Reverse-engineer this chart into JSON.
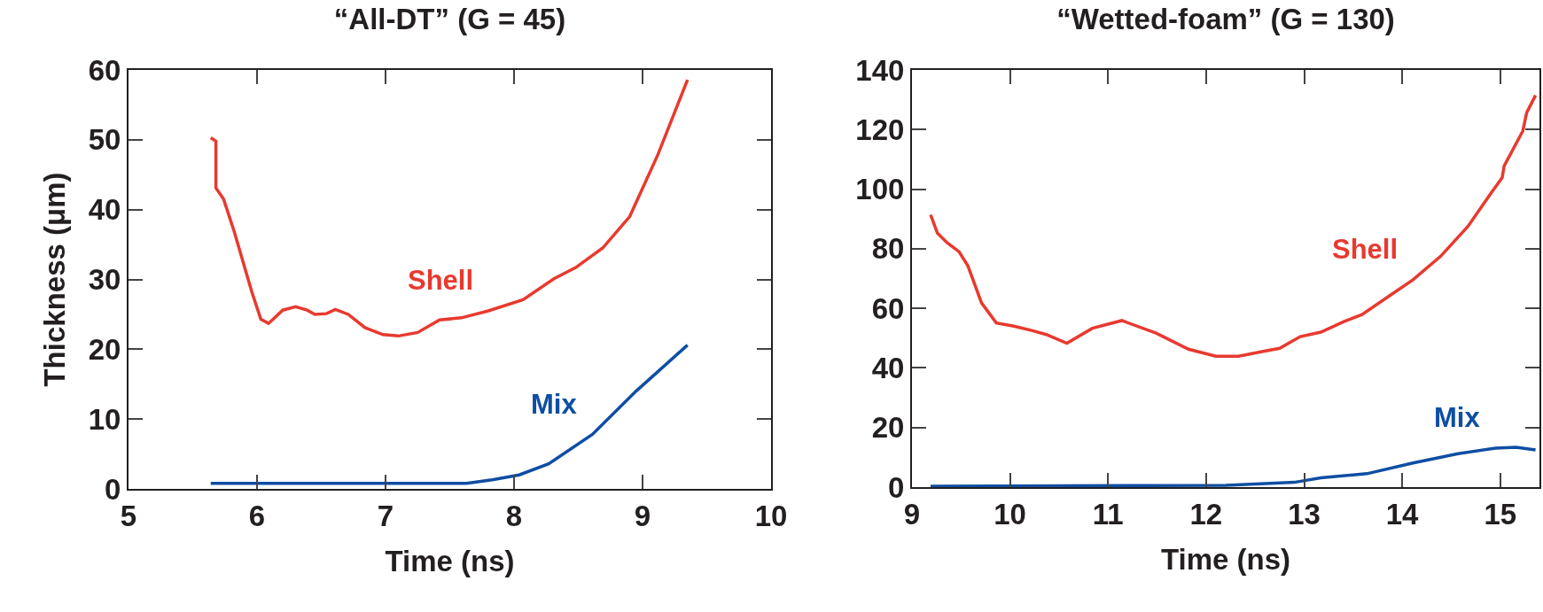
{
  "chart_data": [
    {
      "type": "line",
      "title": "“All-DT” (G = 45)",
      "xlabel": "Time (ns)",
      "ylabel": "Thickness (μm)",
      "xlim": [
        5,
        10
      ],
      "xticks": [
        5,
        6,
        7,
        8,
        9,
        10
      ],
      "ylim": [
        0,
        60
      ],
      "yticks": [
        0,
        10,
        20,
        30,
        40,
        50,
        60
      ],
      "grid": false,
      "legend": false,
      "marker": "none",
      "line_style": "solid",
      "series": [
        {
          "name": "Shell",
          "color": "#e8392f",
          "x": [
            5.64,
            5.68,
            5.68,
            5.74,
            5.82,
            5.96,
            6.03,
            6.09,
            6.2,
            6.3,
            6.39,
            6.45,
            6.54,
            6.61,
            6.71,
            6.84,
            6.98,
            7.1,
            7.25,
            7.42,
            7.59,
            7.8,
            8.07,
            8.31,
            8.48,
            8.69,
            8.9,
            9.12,
            9.35
          ],
          "values": [
            50.3,
            49.8,
            43.1,
            41.5,
            37,
            28.2,
            24.3,
            23.7,
            25.6,
            26.1,
            25.6,
            25,
            25.1,
            25.7,
            25,
            23.1,
            22.1,
            21.9,
            22.4,
            24.2,
            24.5,
            25.5,
            27.1,
            30.1,
            31.7,
            34.5,
            39,
            47.9,
            58.6
          ]
        },
        {
          "name": "Mix",
          "color": "#0e4ea3",
          "x": [
            5.64,
            7.63,
            7.83,
            8.04,
            8.27,
            8.61,
            8.95,
            9.35
          ],
          "values": [
            0.8,
            0.8,
            1.3,
            2,
            3.6,
            7.8,
            14,
            20.6
          ]
        }
      ]
    },
    {
      "type": "line",
      "title": "“Wetted-foam” (G = 130)",
      "xlabel": "Time (ns)",
      "xlim": [
        9,
        15.4
      ],
      "xticks": [
        9,
        10,
        11,
        12,
        13,
        14,
        15
      ],
      "ylim": [
        0,
        140
      ],
      "yticks": [
        0,
        20,
        40,
        60,
        80,
        100,
        120,
        140
      ],
      "grid": false,
      "legend": false,
      "marker": "none",
      "line_style": "solid",
      "series": [
        {
          "name": "Shell",
          "color": "#e8392f",
          "x": [
            9.19,
            9.26,
            9.36,
            9.48,
            9.57,
            9.71,
            9.86,
            10.04,
            10.23,
            10.37,
            10.58,
            10.84,
            11.14,
            11.49,
            11.82,
            12.1,
            12.33,
            12.57,
            12.75,
            12.96,
            13.17,
            13.41,
            13.59,
            13.87,
            14.11,
            14.39,
            14.67,
            14.9,
            15.02,
            15.04,
            15.23,
            15.27,
            15.36
          ],
          "values": [
            91.4,
            85.2,
            82,
            79,
            74.3,
            61.8,
            55.1,
            54,
            52.5,
            51.2,
            48.3,
            53.3,
            55.9,
            51.7,
            46.3,
            43.9,
            43.9,
            45.5,
            46.6,
            50.5,
            52,
            55.6,
            57.9,
            64.2,
            69.6,
            77.4,
            87.5,
            98.4,
            103.9,
            107.8,
            119.5,
            125.7,
            131.5
          ]
        },
        {
          "name": "Mix",
          "color": "#0e4ea3",
          "x": [
            9.19,
            12.2,
            12.9,
            13.17,
            13.64,
            14.11,
            14.57,
            14.95,
            15.16,
            15.36
          ],
          "values": [
            0.3,
            0.6,
            1.6,
            3.1,
            4.5,
            8.1,
            11.2,
            13.1,
            13.4,
            12.5
          ]
        }
      ]
    }
  ]
}
